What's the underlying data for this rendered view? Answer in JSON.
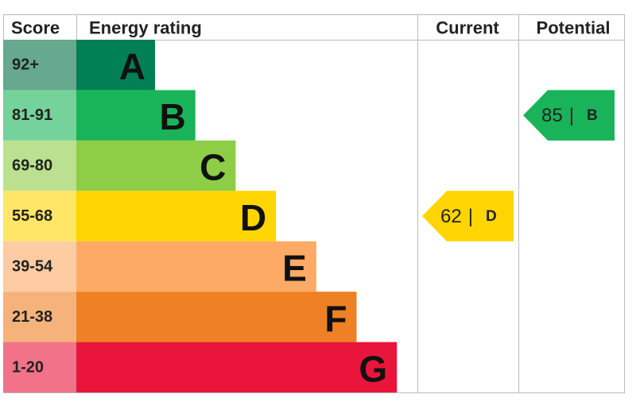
{
  "header": {
    "score": "Score",
    "energy_rating": "Energy rating",
    "current": "Current",
    "potential": "Potential"
  },
  "bands": [
    {
      "score": "92+",
      "letter": "A",
      "color": "#008054",
      "light": "#66a98e"
    },
    {
      "score": "81-91",
      "letter": "B",
      "color": "#19b459",
      "light": "#75d29b"
    },
    {
      "score": "69-80",
      "letter": "C",
      "color": "#8dce46",
      "light": "#bbe190"
    },
    {
      "score": "55-68",
      "letter": "D",
      "color": "#ffd500",
      "light": "#ffe666"
    },
    {
      "score": "39-54",
      "letter": "E",
      "color": "#fcaa65",
      "light": "#fdcca3"
    },
    {
      "score": "21-38",
      "letter": "F",
      "color": "#ef8023",
      "light": "#f5b37b"
    },
    {
      "score": "1-20",
      "letter": "G",
      "color": "#e9153b",
      "light": "#f27389"
    }
  ],
  "separator": "|",
  "current": {
    "score": 62,
    "rating": "D"
  },
  "potential": {
    "score": 85,
    "rating": "B"
  }
}
